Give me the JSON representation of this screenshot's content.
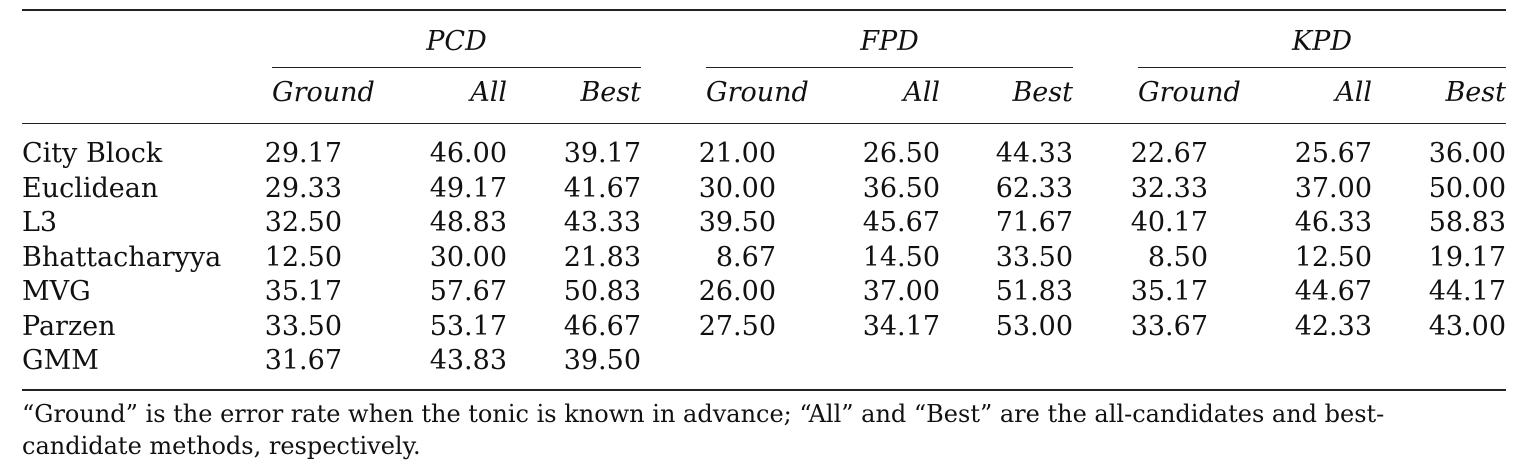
{
  "table": {
    "groups": [
      {
        "name": "PCD",
        "subcolumns": [
          "Ground",
          "All",
          "Best"
        ]
      },
      {
        "name": "FPD",
        "subcolumns": [
          "Ground",
          "All",
          "Best"
        ]
      },
      {
        "name": "KPD",
        "subcolumns": [
          "Ground",
          "All",
          "Best"
        ]
      }
    ],
    "rows": [
      {
        "label": "City Block",
        "values": [
          "29.17",
          "46.00",
          "39.17",
          "21.00",
          "26.50",
          "44.33",
          "22.67",
          "25.67",
          "36.00"
        ]
      },
      {
        "label": "Euclidean",
        "values": [
          "29.33",
          "49.17",
          "41.67",
          "30.00",
          "36.50",
          "62.33",
          "32.33",
          "37.00",
          "50.00"
        ]
      },
      {
        "label": "L3",
        "values": [
          "32.50",
          "48.83",
          "43.33",
          "39.50",
          "45.67",
          "71.67",
          "40.17",
          "46.33",
          "58.83"
        ]
      },
      {
        "label": "Bhattacharyya",
        "values": [
          "12.50",
          "30.00",
          "21.83",
          "8.67",
          "14.50",
          "33.50",
          "8.50",
          "12.50",
          "19.17"
        ]
      },
      {
        "label": "MVG",
        "values": [
          "35.17",
          "57.67",
          "50.83",
          "26.00",
          "37.00",
          "51.83",
          "35.17",
          "44.67",
          "44.17"
        ]
      },
      {
        "label": "Parzen",
        "values": [
          "33.50",
          "53.17",
          "46.67",
          "27.50",
          "34.17",
          "53.00",
          "33.67",
          "42.33",
          "43.00"
        ]
      },
      {
        "label": "GMM",
        "values": [
          "31.67",
          "43.83",
          "39.50",
          "",
          "",
          "",
          "",
          "",
          ""
        ]
      }
    ],
    "footnote": "“Ground” is the error rate when the tonic is known in advance; “All” and “Best” are the all-candidates and best-candidate methods, respectively."
  }
}
